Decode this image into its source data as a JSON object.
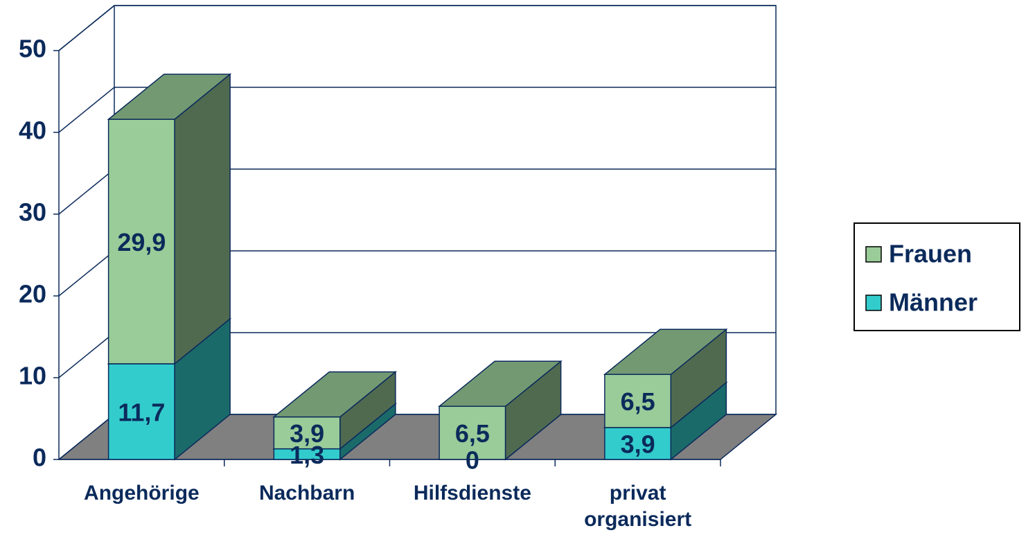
{
  "chart_data": {
    "type": "bar3d_stacked",
    "categories": [
      "Angehörige",
      "Nachbarn",
      "Hilfsdienste",
      "privat organisiert"
    ],
    "series": [
      {
        "name": "Männer",
        "color": "#33cccc",
        "values": [
          11.7,
          1.3,
          0,
          3.9
        ],
        "value_labels": [
          "11,7",
          "1,3",
          "0",
          "3,9"
        ]
      },
      {
        "name": "Frauen",
        "color": "#99cc99",
        "values": [
          29.9,
          3.9,
          6.5,
          6.5
        ],
        "value_labels": [
          "29,9",
          "3,9",
          "6,5",
          "6,5"
        ]
      }
    ],
    "ylim": [
      0,
      50
    ],
    "yticks": [
      0,
      10,
      20,
      30,
      40,
      50
    ],
    "grid": true,
    "legend": "right"
  }
}
